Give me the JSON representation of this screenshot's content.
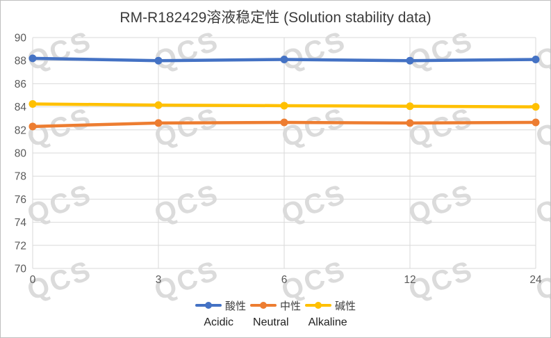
{
  "watermark": {
    "text": "QCS",
    "color": "#dbdbdb"
  },
  "chart_data": {
    "type": "line",
    "title": "RM-R182429溶液稳定性 (Solution stability data)",
    "categories": [
      "0",
      "3",
      "6",
      "12",
      "24"
    ],
    "series": [
      {
        "name": "酸性",
        "name_en": "Acidic",
        "color": "#4472C4",
        "values": [
          88.2,
          88.0,
          88.1,
          88.0,
          88.1
        ]
      },
      {
        "name": "中性",
        "name_en": "Neutral",
        "color": "#ED7D31",
        "values": [
          82.3,
          82.6,
          82.65,
          82.6,
          82.65
        ]
      },
      {
        "name": "碱性",
        "name_en": "Alkaline",
        "color": "#FFC000",
        "values": [
          84.25,
          84.15,
          84.1,
          84.05,
          84.0
        ]
      }
    ],
    "xlabel": "",
    "ylabel": "",
    "ylim": [
      70,
      90
    ],
    "ytick_step": 2,
    "y_ticks": [
      70,
      72,
      74,
      76,
      78,
      80,
      82,
      84,
      86,
      88,
      90
    ],
    "grid": true,
    "gridline_color": "#d9d9d9",
    "axis_label_color": "#595959",
    "legend_position": "bottom"
  }
}
